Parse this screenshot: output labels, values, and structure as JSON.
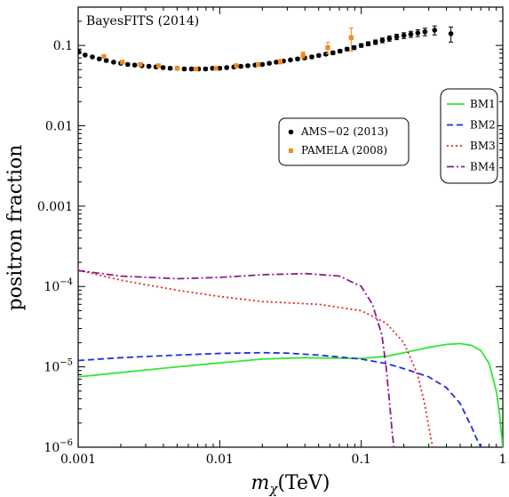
{
  "chart_data": {
    "type": "line",
    "annotation": "BayesFITS (2014)",
    "xlabel_main": "m",
    "xlabel_sub": "χ",
    "xlabel_unit": "(TeV)",
    "ylabel": "positron fraction",
    "x_scale": "log",
    "y_scale": "log",
    "xlim": [
      0.001,
      1
    ],
    "ylim": [
      1e-06,
      0.3
    ],
    "grid": false,
    "x_ticks": [
      {
        "value": 0.001,
        "label": "0.001"
      },
      {
        "value": 0.01,
        "label": "0.01"
      },
      {
        "value": 0.1,
        "label": "0.1"
      },
      {
        "value": 1,
        "label": "1"
      }
    ],
    "y_ticks": [
      {
        "value": 0.1,
        "label": "0.1",
        "base": "",
        "exp": ""
      },
      {
        "value": 0.01,
        "label": "0.01",
        "base": "",
        "exp": ""
      },
      {
        "value": 0.001,
        "label": "0.001",
        "base": "",
        "exp": ""
      },
      {
        "value": 0.0001,
        "label": "",
        "base": "10",
        "exp": "−4"
      },
      {
        "value": 1e-05,
        "label": "",
        "base": "10",
        "exp": "−5"
      },
      {
        "value": 1e-06,
        "label": "",
        "base": "10",
        "exp": "−6"
      }
    ],
    "data_legend": {
      "placement": "center",
      "entries": [
        {
          "name": "AMS−02 (2013)",
          "color": "#000000",
          "marker": "circle"
        },
        {
          "name": "PAMELA (2008)",
          "color": "#f28a1e",
          "marker": "square"
        }
      ]
    },
    "curve_legend": {
      "placement": "top-right",
      "entries": [
        {
          "name": "BM1",
          "color": "#33e633",
          "dash": "solid"
        },
        {
          "name": "BM2",
          "color": "#1f2fe0",
          "dash": "dashed"
        },
        {
          "name": "BM3",
          "color": "#ef2020",
          "dash": "dotted"
        },
        {
          "name": "BM4",
          "color": "#8b1a90",
          "dash": "dashdot"
        }
      ]
    },
    "points": [
      {
        "name": "AMS−02 (2013)",
        "color": "#000000",
        "marker": "circle",
        "x": [
          0.00101,
          0.00112,
          0.00126,
          0.00141,
          0.00158,
          0.00178,
          0.002,
          0.00224,
          0.00251,
          0.00282,
          0.00316,
          0.00355,
          0.00398,
          0.00447,
          0.00501,
          0.00562,
          0.00631,
          0.00708,
          0.00794,
          0.00891,
          0.01,
          0.0112,
          0.0126,
          0.0141,
          0.0158,
          0.0178,
          0.02,
          0.0224,
          0.0251,
          0.0282,
          0.0316,
          0.0355,
          0.0398,
          0.0447,
          0.0501,
          0.0562,
          0.0631,
          0.0708,
          0.0794,
          0.0891,
          0.1,
          0.112,
          0.126,
          0.141,
          0.158,
          0.178,
          0.2,
          0.224,
          0.251,
          0.282,
          0.33,
          0.43
        ],
        "y": [
          0.083,
          0.076,
          0.072,
          0.068,
          0.065,
          0.062,
          0.06,
          0.058,
          0.057,
          0.056,
          0.055,
          0.054,
          0.053,
          0.052,
          0.052,
          0.051,
          0.051,
          0.051,
          0.051,
          0.052,
          0.052,
          0.053,
          0.054,
          0.055,
          0.056,
          0.057,
          0.058,
          0.06,
          0.062,
          0.064,
          0.066,
          0.068,
          0.07,
          0.072,
          0.075,
          0.078,
          0.081,
          0.085,
          0.09,
          0.094,
          0.1,
          0.105,
          0.11,
          0.116,
          0.122,
          0.128,
          0.133,
          0.138,
          0.143,
          0.148,
          0.155,
          0.14
        ],
        "err": [
          0.003,
          0.002,
          0.002,
          0.002,
          0.002,
          0.002,
          0.002,
          0.002,
          0.002,
          0.002,
          0.002,
          0.002,
          0.002,
          0.002,
          0.002,
          0.002,
          0.002,
          0.002,
          0.002,
          0.002,
          0.002,
          0.002,
          0.002,
          0.002,
          0.002,
          0.002,
          0.002,
          0.002,
          0.002,
          0.002,
          0.002,
          0.003,
          0.003,
          0.003,
          0.003,
          0.003,
          0.004,
          0.004,
          0.004,
          0.005,
          0.005,
          0.006,
          0.007,
          0.008,
          0.009,
          0.01,
          0.011,
          0.012,
          0.014,
          0.016,
          0.02,
          0.03
        ]
      },
      {
        "name": "PAMELA (2008)",
        "color": "#f28a1e",
        "marker": "square",
        "x": [
          0.00152,
          0.00205,
          0.00275,
          0.0037,
          0.005,
          0.0068,
          0.0094,
          0.0131,
          0.0187,
          0.0268,
          0.0388,
          0.058,
          0.085
        ],
        "y": [
          0.073,
          0.062,
          0.058,
          0.056,
          0.052,
          0.051,
          0.052,
          0.056,
          0.058,
          0.063,
          0.076,
          0.094,
          0.125
        ],
        "err": [
          0.003,
          0.002,
          0.002,
          0.002,
          0.002,
          0.002,
          0.002,
          0.003,
          0.003,
          0.004,
          0.007,
          0.015,
          0.04
        ]
      }
    ],
    "series": [
      {
        "name": "BM1",
        "color": "#33e633",
        "dash": "solid",
        "x": [
          0.001,
          0.002,
          0.005,
          0.01,
          0.02,
          0.04,
          0.07,
          0.1,
          0.15,
          0.2,
          0.3,
          0.4,
          0.5,
          0.6,
          0.7,
          0.8,
          0.9,
          0.95,
          1.0
        ],
        "y": [
          7.5e-06,
          8.5e-06,
          1e-05,
          1.12e-05,
          1.25e-05,
          1.3e-05,
          1.28e-05,
          1.27e-05,
          1.35e-05,
          1.5e-05,
          1.75e-05,
          1.9e-05,
          1.95e-05,
          1.85e-05,
          1.6e-05,
          1.1e-05,
          5e-06,
          2.5e-06,
          1e-06
        ]
      },
      {
        "name": "BM2",
        "color": "#1f2fe0",
        "dash": "dashed",
        "x": [
          0.001,
          0.002,
          0.005,
          0.01,
          0.02,
          0.03,
          0.05,
          0.1,
          0.15,
          0.2,
          0.3,
          0.4,
          0.5,
          0.6,
          0.65,
          0.7
        ],
        "y": [
          1.2e-05,
          1.3e-05,
          1.4e-05,
          1.47e-05,
          1.5e-05,
          1.48e-05,
          1.4e-05,
          1.25e-05,
          1.1e-05,
          9.5e-06,
          7.5e-06,
          5.5e-06,
          3.5e-06,
          1.8e-06,
          1.3e-06,
          1e-06
        ]
      },
      {
        "name": "BM3",
        "color": "#ef2020",
        "dash": "dotted",
        "x": [
          0.001,
          0.002,
          0.005,
          0.01,
          0.02,
          0.05,
          0.1,
          0.15,
          0.2,
          0.25,
          0.28,
          0.3,
          0.31,
          0.32
        ],
        "y": [
          0.00016,
          0.00012,
          9e-05,
          7.5e-05,
          6.5e-05,
          6e-05,
          5e-05,
          3.5e-05,
          2e-05,
          8e-06,
          3.5e-06,
          1.8e-06,
          1.3e-06,
          1e-06
        ]
      },
      {
        "name": "BM4",
        "color": "#8b1a90",
        "dash": "dashdot",
        "x": [
          0.001,
          0.002,
          0.005,
          0.01,
          0.02,
          0.04,
          0.07,
          0.1,
          0.12,
          0.14,
          0.15,
          0.16,
          0.165,
          0.17
        ],
        "y": [
          0.000158,
          0.000135,
          0.000125,
          0.00013,
          0.00014,
          0.000145,
          0.000135,
          0.0001,
          6e-05,
          2.5e-05,
          1e-05,
          3e-06,
          1.6e-06,
          1e-06
        ]
      }
    ]
  }
}
